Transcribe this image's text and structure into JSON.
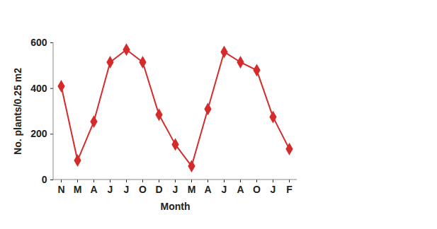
{
  "chart_data": {
    "type": "line",
    "xlabel": "Month",
    "ylabel": "No. plants/0.25 m2",
    "categories": [
      "N",
      "M",
      "A",
      "J",
      "J",
      "O",
      "D",
      "J",
      "M",
      "A",
      "J",
      "A",
      "O",
      "J",
      "F"
    ],
    "values": [
      410,
      85,
      255,
      515,
      570,
      515,
      285,
      155,
      60,
      310,
      560,
      515,
      480,
      275,
      135
    ],
    "color": "#d42b2b",
    "marker": "diamond",
    "ylim": [
      0,
      600
    ],
    "yticks": [
      0,
      200,
      400,
      600
    ],
    "grid": false
  }
}
